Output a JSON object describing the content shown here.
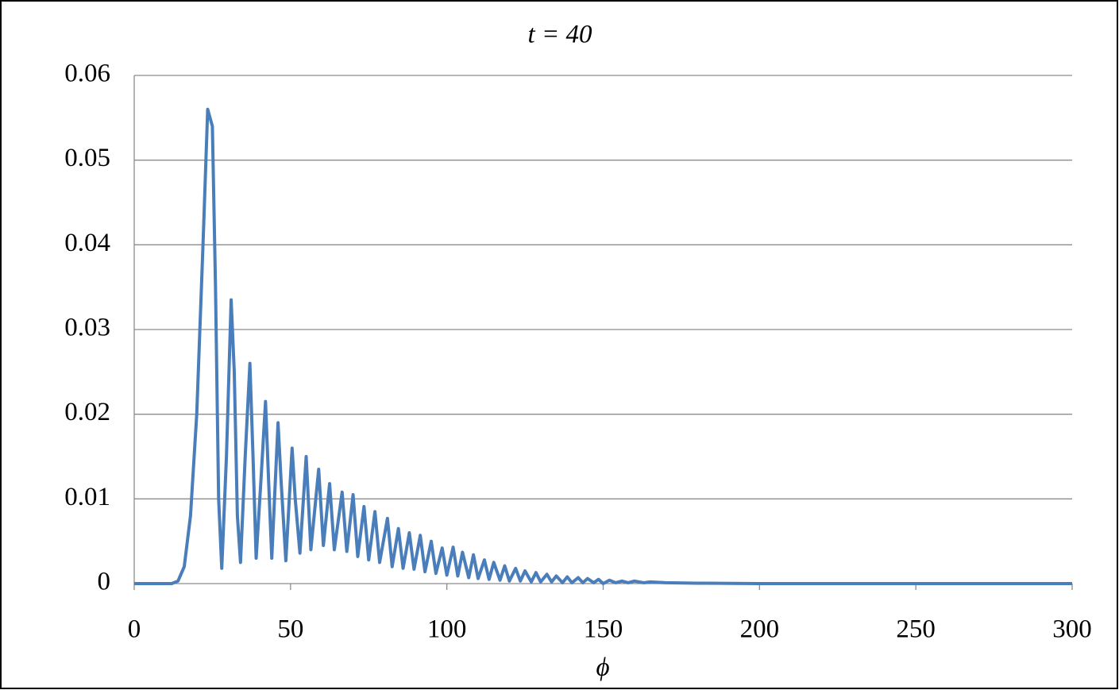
{
  "chart_data": {
    "type": "line",
    "title": "t = 40",
    "x_label": "ϕ",
    "color": "#4a7ebb",
    "grid": true,
    "xlim": [
      0,
      300
    ],
    "xticks": [
      0,
      50,
      100,
      150,
      200,
      250,
      300
    ],
    "ylim": [
      0,
      0.06
    ],
    "yticks": [
      {
        "value": 0,
        "label": "0"
      },
      {
        "value": 0.01,
        "label": "0.01"
      },
      {
        "value": 0.02,
        "label": "0.02"
      },
      {
        "value": 0.03,
        "label": "0.03"
      },
      {
        "value": 0.04,
        "label": "0.04"
      },
      {
        "value": 0.05,
        "label": "0.05"
      },
      {
        "value": 0.06,
        "label": "0.06"
      }
    ],
    "x": [
      0,
      12,
      14,
      16,
      18,
      20,
      22,
      23.5,
      25,
      26,
      27,
      28,
      29.5,
      31,
      32,
      33,
      34,
      35.5,
      37,
      38,
      39,
      40.5,
      42,
      43,
      44,
      46,
      47,
      48.5,
      50.5,
      51.5,
      53,
      55,
      56.5,
      59,
      60.5,
      62.5,
      64,
      66.5,
      68,
      70,
      71.5,
      73.5,
      75,
      77,
      78.5,
      81,
      82.5,
      84.5,
      86,
      88,
      89.5,
      91.5,
      93,
      95,
      96.5,
      98.5,
      100,
      102,
      103.5,
      105,
      107,
      108.5,
      110,
      112,
      113.5,
      115,
      117,
      118.5,
      120,
      122,
      123.5,
      125,
      127,
      128.5,
      130,
      132,
      133.5,
      135,
      137,
      138.5,
      140,
      142,
      143.5,
      145,
      147,
      148.5,
      150,
      152,
      154,
      156,
      158,
      160,
      163,
      165,
      170,
      180,
      200,
      300
    ],
    "values": [
      0,
      0,
      0.0003,
      0.002,
      0.008,
      0.02,
      0.04,
      0.056,
      0.054,
      0.035,
      0.01,
      0.0018,
      0.015,
      0.0335,
      0.025,
      0.008,
      0.0025,
      0.015,
      0.026,
      0.015,
      0.003,
      0.012,
      0.0215,
      0.012,
      0.003,
      0.019,
      0.012,
      0.0027,
      0.016,
      0.01,
      0.0036,
      0.015,
      0.004,
      0.0135,
      0.0045,
      0.0118,
      0.004,
      0.0108,
      0.0038,
      0.0105,
      0.0032,
      0.0091,
      0.0028,
      0.0085,
      0.0025,
      0.0077,
      0.002,
      0.0065,
      0.0018,
      0.006,
      0.0017,
      0.0057,
      0.0014,
      0.005,
      0.0012,
      0.0042,
      0.001,
      0.0043,
      0.0009,
      0.0037,
      0.0007,
      0.0034,
      0.0006,
      0.0028,
      0.0005,
      0.0025,
      0.0004,
      0.0021,
      0.0003,
      0.0018,
      0.0003,
      0.0015,
      0.0002,
      0.0013,
      0.0002,
      0.0011,
      0.0002,
      0.0009,
      0.0001,
      0.0008,
      0.0001,
      0.0007,
      0.0001,
      0.0006,
      0.0001,
      0.0005,
      0,
      0.0004,
      0.0001,
      0.0003,
      0.0001,
      0.0003,
      0.0001,
      0.0002,
      0.0001,
      5e-05,
      0,
      0
    ]
  }
}
